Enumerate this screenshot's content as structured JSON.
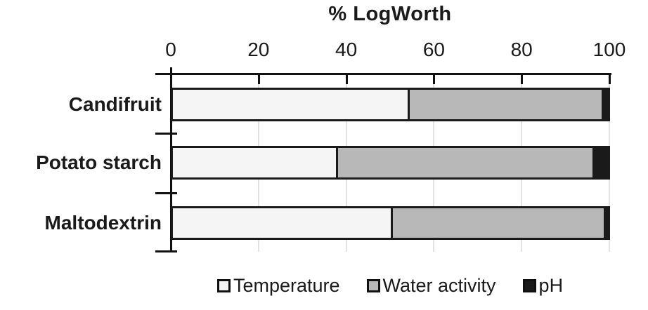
{
  "chart_data": {
    "type": "bar",
    "orientation": "horizontal-stacked",
    "title": "% LogWorth",
    "categories": [
      "Candifruit",
      "Potato starch",
      "Maltodextrin"
    ],
    "series": [
      {
        "name": "Temperature",
        "color": "#f5f5f5",
        "values": [
          54,
          37.5,
          50
        ]
      },
      {
        "name": "Water activity",
        "color": "#b8b8b8",
        "values": [
          44,
          58.5,
          48.5
        ]
      },
      {
        "name": "pH",
        "color": "#1a1a1a",
        "values": [
          2,
          4,
          1.5
        ]
      }
    ],
    "x_ticks": [
      0,
      20,
      40,
      60,
      80,
      100
    ],
    "xlim": [
      0,
      100
    ],
    "xlabel": "",
    "ylabel": "",
    "grid": true,
    "legend_position": "bottom",
    "axis_color": "#111111",
    "gridline_color": "#e3e3e3",
    "background_color": "#ffffff",
    "text_color": "#1a1a1a"
  }
}
